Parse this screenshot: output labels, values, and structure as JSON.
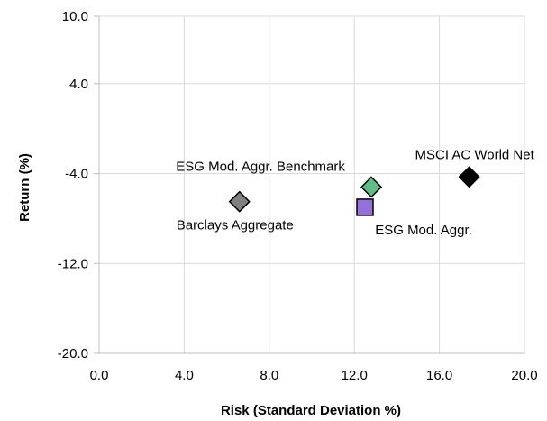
{
  "chart_data": {
    "type": "scatter",
    "xlabel": "Risk (Standard Deviation %)",
    "ylabel": "Return (%)",
    "xlim": [
      0,
      20
    ],
    "ylim": [
      -20,
      10
    ],
    "x_ticks": [
      "0.0",
      "4.0",
      "8.0",
      "12.0",
      "16.0",
      "20.0"
    ],
    "y_ticks": [
      "10.0",
      "4.0",
      "-4.0",
      "-12.0",
      "-20.0"
    ],
    "y_tick_values": [
      10,
      4,
      -4,
      -12,
      -20
    ],
    "x_tick_values": [
      0,
      4,
      8,
      12,
      16,
      20
    ],
    "grid": true,
    "points": [
      {
        "label": "Barclays Aggregate",
        "x": 6.6,
        "y": -6.5,
        "marker": "diamond",
        "color": "#808080",
        "label_pos": "below"
      },
      {
        "label": "ESG Mod. Aggr. Benchmark",
        "x": 12.8,
        "y": -5.2,
        "marker": "diamond",
        "color": "#5EBF86",
        "label_pos": "above-left"
      },
      {
        "label": "ESG Mod. Aggr.",
        "x": 12.5,
        "y": -7.0,
        "marker": "square",
        "color": "#9370DB",
        "label_pos": "below-right"
      },
      {
        "label": "MSCI AC World Net",
        "x": 17.4,
        "y": -4.3,
        "marker": "diamond",
        "color": "#000000",
        "label_pos": "above"
      }
    ]
  }
}
